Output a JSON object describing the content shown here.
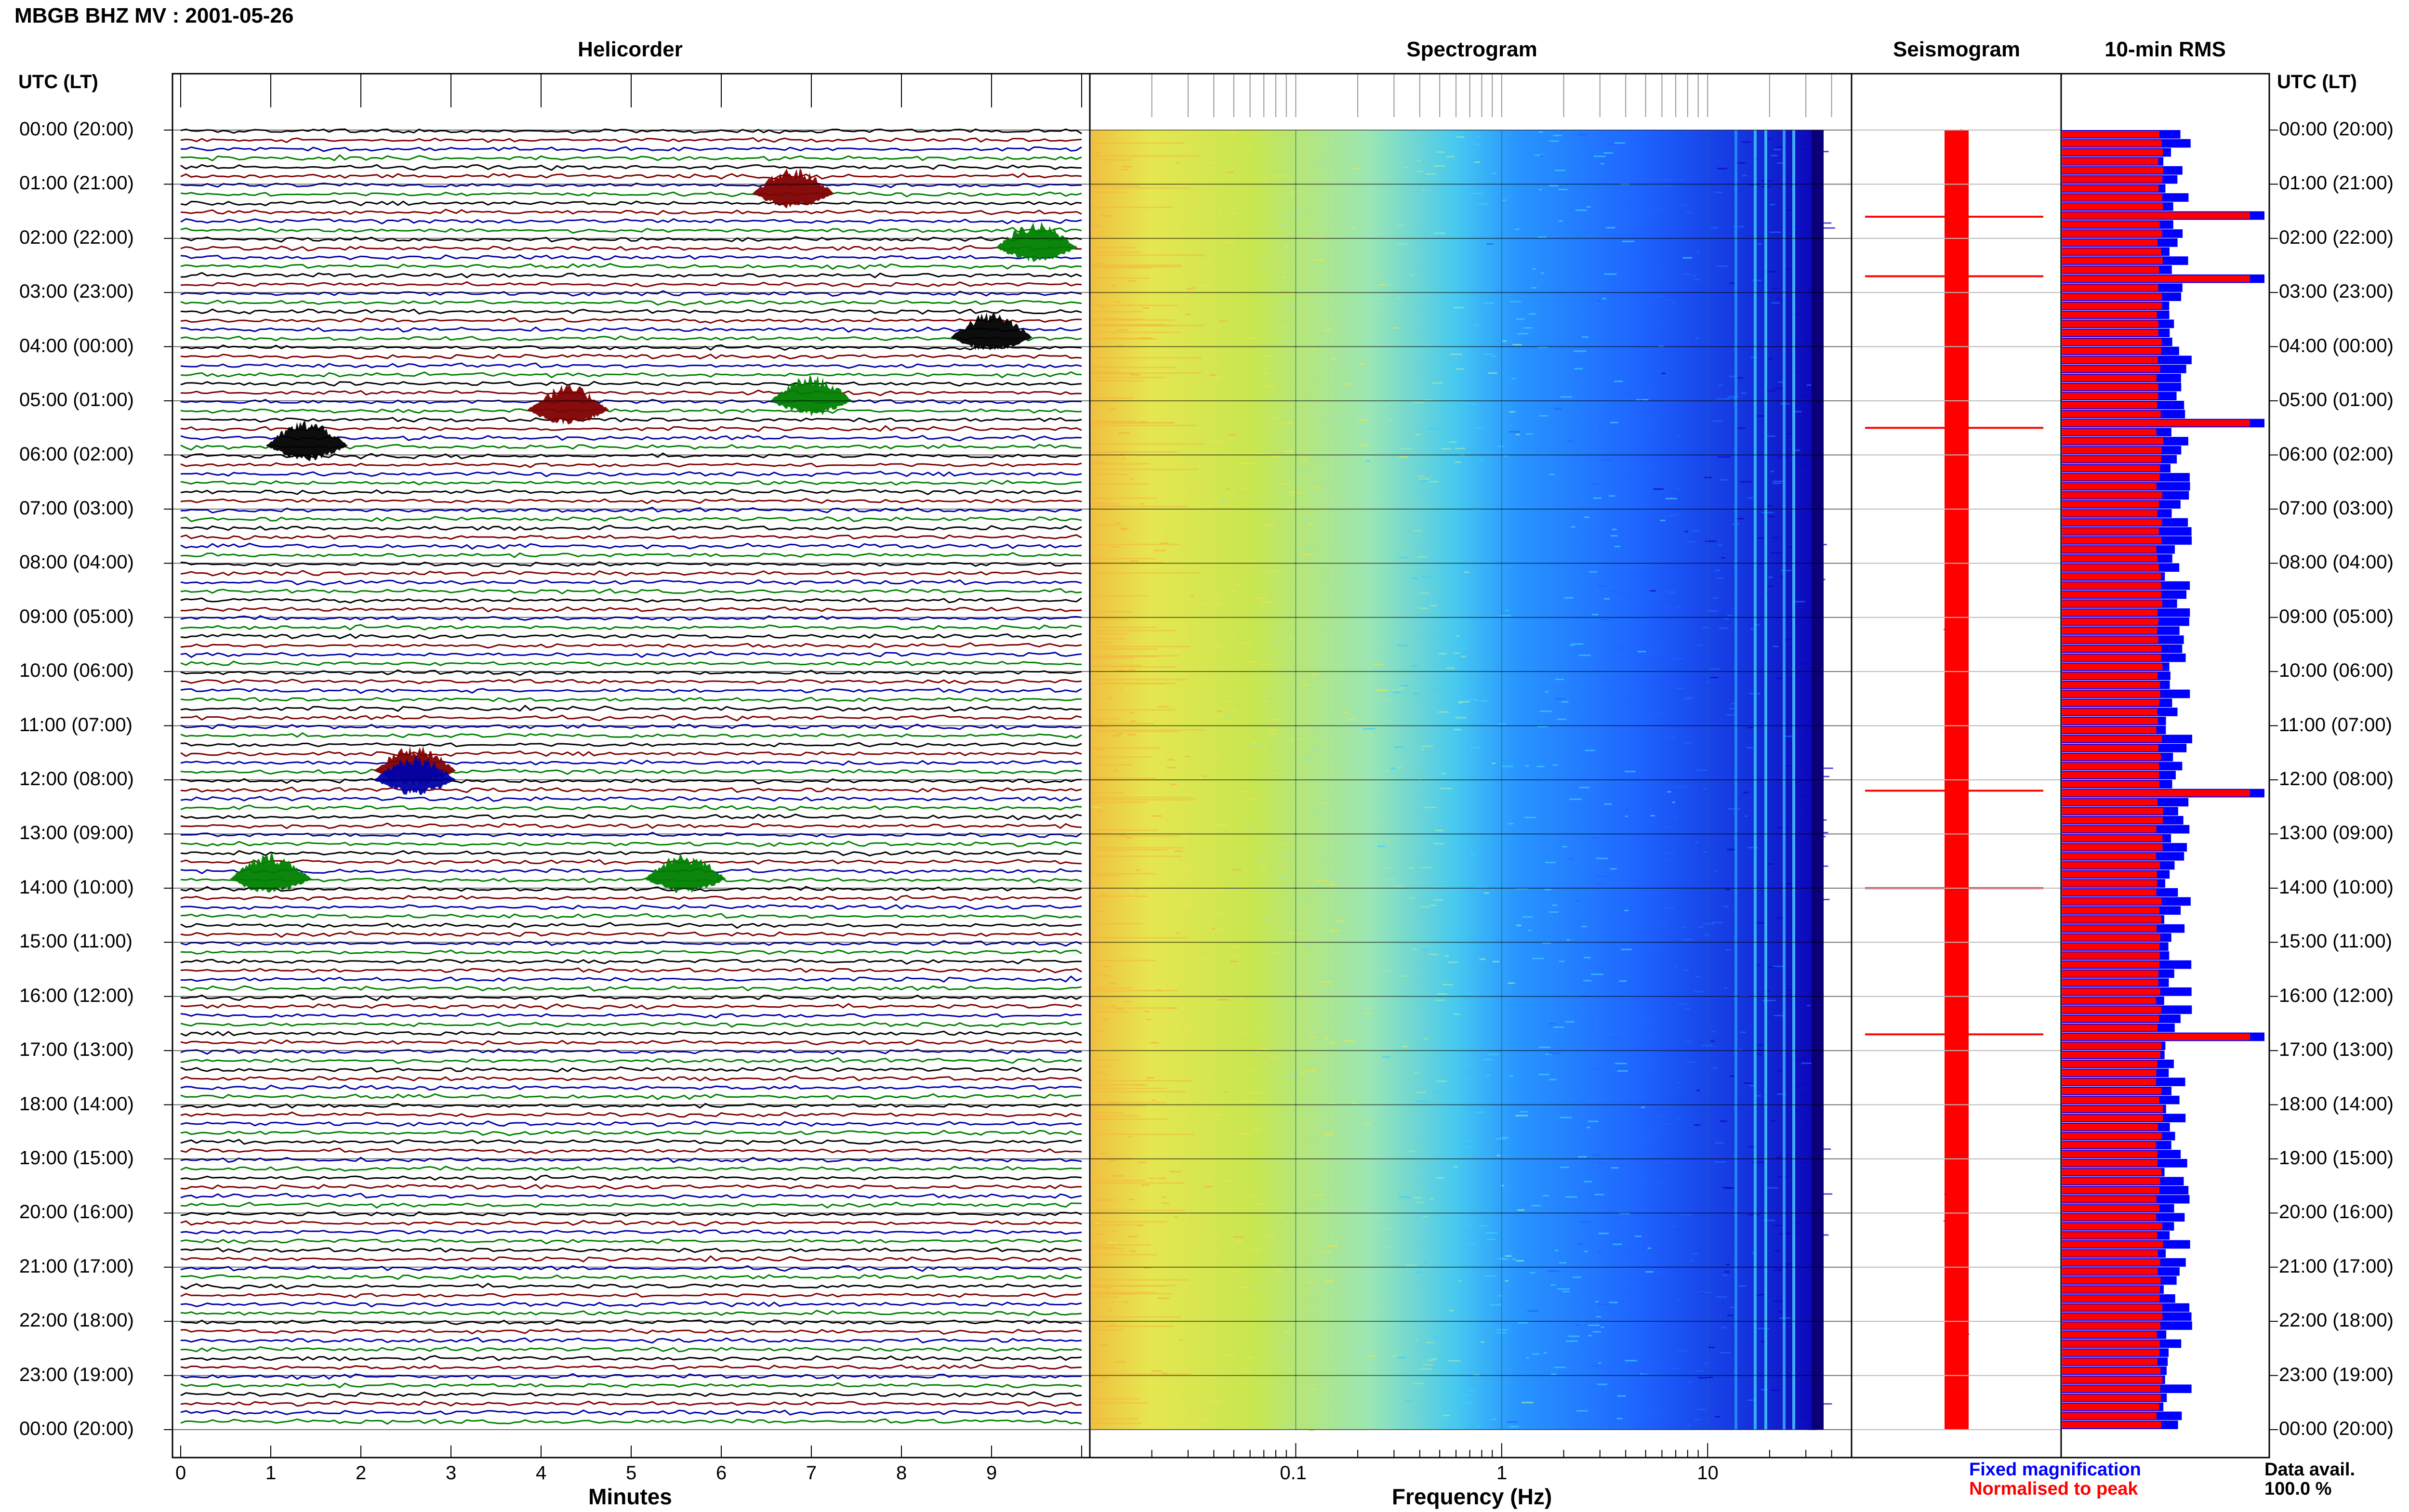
{
  "header": {
    "title": "MBGB BHZ MV : 2001-05-26",
    "time_axis_label": "UTC (LT)"
  },
  "panels": {
    "helicorder": "Helicorder",
    "spectrogram": "Spectrogram",
    "seismogram": "Seismogram",
    "rms": "10-min RMS"
  },
  "legend": {
    "fixed": "Fixed magnification",
    "normalised": "Normalised to peak",
    "fixed_color": "#0000ff",
    "normalised_color": "#ff0000"
  },
  "data_avail": {
    "label": "Data avail.",
    "value": "100.0 %"
  },
  "colors": {
    "helicorder_traces": [
      "#000000",
      "#800000",
      "#0000aa",
      "#008000"
    ],
    "spectrogram_scale": [
      "#1500c8",
      "#1e64ff",
      "#3ccdff",
      "#9be6b4",
      "#e6e650",
      "#f5b43c"
    ]
  },
  "chart_data": [
    {
      "type": "line",
      "name": "helicorder",
      "title": "Helicorder",
      "xlabel": "Minutes",
      "x_ticks": [
        "0",
        "1",
        "2",
        "3",
        "4",
        "5",
        "6",
        "7",
        "8",
        "9"
      ],
      "xlim": [
        0,
        10
      ],
      "row_labels": [
        "00:00 (20:00)",
        "01:00 (21:00)",
        "02:00 (22:00)",
        "03:00 (23:00)",
        "04:00 (00:00)",
        "05:00 (01:00)",
        "06:00 (02:00)",
        "07:00 (03:00)",
        "08:00 (04:00)",
        "09:00 (05:00)",
        "10:00 (06:00)",
        "11:00 (07:00)",
        "12:00 (08:00)",
        "13:00 (09:00)",
        "14:00 (10:00)",
        "15:00 (11:00)",
        "16:00 (12:00)",
        "17:00 (13:00)",
        "18:00 (14:00)",
        "19:00 (15:00)",
        "20:00 (16:00)",
        "21:00 (17:00)",
        "22:00 (18:00)",
        "23:00 (19:00)",
        "00:00 (20:00)"
      ],
      "traces_per_hour": 6,
      "events": [
        {
          "hour": 1.17,
          "minute": 6.8,
          "color": "#800000"
        },
        {
          "hour": 2.17,
          "minute": 9.5,
          "color": "#008000"
        },
        {
          "hour": 3.83,
          "minute": 9.0,
          "color": "#000000"
        },
        {
          "hour": 5.17,
          "minute": 4.3,
          "color": "#800000"
        },
        {
          "hour": 5.0,
          "minute": 7.0,
          "color": "#008000"
        },
        {
          "hour": 5.83,
          "minute": 1.4,
          "color": "#000000"
        },
        {
          "hour": 11.83,
          "minute": 2.6,
          "color": "#800000"
        },
        {
          "hour": 12.0,
          "minute": 2.6,
          "color": "#0000aa"
        },
        {
          "hour": 13.83,
          "minute": 1.0,
          "color": "#008000"
        },
        {
          "hour": 13.83,
          "minute": 5.6,
          "color": "#008000"
        }
      ]
    },
    {
      "type": "heatmap",
      "name": "spectrogram",
      "title": "Spectrogram",
      "xlabel": "Frequency (Hz)",
      "x_scale": "log",
      "xlim": [
        0.01,
        50
      ],
      "x_ticks": [
        "0.1",
        "1",
        "10"
      ]
    },
    {
      "type": "line",
      "name": "seismogram",
      "title": "Seismogram",
      "series": [
        {
          "name": "Fixed magnification",
          "color": "#0000ff"
        },
        {
          "name": "Normalised to peak",
          "color": "#ff0000"
        }
      ],
      "spike_hours": [
        1.6,
        2.7,
        5.5,
        12.2,
        14.0,
        16.7
      ]
    },
    {
      "type": "bar",
      "name": "rms",
      "title": "10-min RMS",
      "orientation": "horizontal",
      "intervals": 144,
      "series": [
        {
          "name": "Fixed magnification",
          "color": "#0000ff"
        },
        {
          "name": "Normalised to peak",
          "color": "#ff0000"
        }
      ],
      "peak_hours": [
        1.5,
        2.67,
        5.33,
        12.17,
        16.67
      ],
      "data_availability_percent": 100.0
    }
  ]
}
